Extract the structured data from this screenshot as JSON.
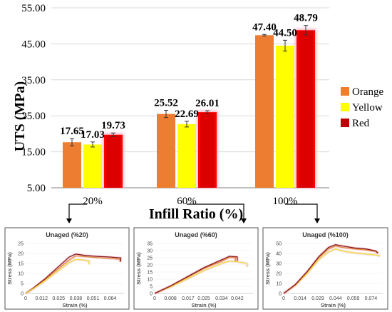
{
  "colors": {
    "orange": "#ED7D31",
    "yellow": "#FFFF00",
    "red": "#FF0000",
    "red_fill": "#C00000",
    "glow": "#F4B6C6",
    "curve_red": "#8B1A1A",
    "curve_orange": "#E4883A",
    "curve_yellow": "#F2E33B",
    "curve_shadow": "#E9B3C6",
    "axis": "#7F7F7F"
  },
  "chart_data": [
    {
      "type": "bar",
      "ylabel": "UTS (MPa)",
      "xlabel": "Infill Ratio (%)",
      "ylim": [
        5.0,
        55.0
      ],
      "yticks": [
        "5.00",
        "15.00",
        "25.00",
        "35.00",
        "45.00",
        "55.00"
      ],
      "ytick_values": [
        5,
        15,
        25,
        35,
        45,
        55
      ],
      "categories": [
        "20%",
        "60%",
        "100%"
      ],
      "legend_position": "right",
      "series": [
        {
          "name": "Orange",
          "values": [
            17.65,
            25.52,
            47.4
          ],
          "errors": [
            1.0,
            1.0,
            0.2
          ],
          "labels": [
            "17.65",
            "25.52",
            "47.40"
          ]
        },
        {
          "name": "Yellow",
          "values": [
            17.03,
            22.69,
            44.5
          ],
          "errors": [
            0.7,
            0.8,
            1.5
          ],
          "labels": [
            "17.03",
            "22.69",
            "44.50"
          ]
        },
        {
          "name": "Red",
          "values": [
            19.73,
            26.01,
            48.79
          ],
          "errors": [
            0.5,
            0.4,
            1.3
          ],
          "labels": [
            "19.73",
            "26.01",
            "48.79"
          ]
        }
      ]
    },
    {
      "type": "line",
      "title": "Unaged (%20)",
      "xlabel": "Strain (%)",
      "ylabel": "Stress (MPa)",
      "xticks": [
        "0",
        "0.012",
        "0.025",
        "0.038",
        "0.051",
        "0.064"
      ],
      "xtick_values": [
        0,
        0.012,
        0.025,
        0.038,
        0.051,
        0.064
      ],
      "yticks": [
        "0",
        "5",
        "10",
        "15",
        "20",
        "25"
      ],
      "ylim": [
        0,
        25
      ],
      "xlim": [
        0,
        0.0745
      ],
      "series": [
        {
          "color_key": "curve_orange",
          "x": [
            0,
            0.005,
            0.015,
            0.025,
            0.033,
            0.038,
            0.045,
            0.055,
            0.064,
            0.0715,
            0.0715
          ],
          "y": [
            0,
            2.2,
            7,
            12.5,
            16.8,
            18.8,
            18.4,
            17.9,
            17.5,
            17.1,
            15.8
          ]
        },
        {
          "color_key": "curve_red",
          "x": [
            0,
            0.005,
            0.015,
            0.025,
            0.033,
            0.038,
            0.045,
            0.055,
            0.064,
            0.072,
            0.072
          ],
          "y": [
            0,
            2.3,
            7.5,
            13.5,
            18.2,
            19.7,
            19.0,
            18.5,
            18.2,
            17.8,
            15.9
          ]
        },
        {
          "color_key": "curve_yellow",
          "x": [
            0,
            0.005,
            0.015,
            0.025,
            0.033,
            0.038,
            0.043,
            0.048,
            0.048
          ],
          "y": [
            0,
            2.0,
            6.5,
            11.5,
            15.5,
            17.0,
            16.8,
            16.2,
            14.5
          ]
        }
      ]
    },
    {
      "type": "line",
      "title": "Unaged (%60)",
      "xlabel": "Strain (%)",
      "ylabel": "Stress (MPa)",
      "xticks": [
        "0",
        "0.008",
        "0.017",
        "0.025",
        "0.034",
        "0.042"
      ],
      "xtick_values": [
        0,
        0.008,
        0.017,
        0.025,
        0.034,
        0.042
      ],
      "yticks": [
        "0",
        "5",
        "10",
        "15",
        "20",
        "25",
        "30",
        "35"
      ],
      "ylim": [
        0,
        35
      ],
      "xlim": [
        0,
        0.05
      ],
      "series": [
        {
          "color_key": "curve_yellow",
          "x": [
            0,
            0.008,
            0.017,
            0.025,
            0.034,
            0.038,
            0.042,
            0.045,
            0.047,
            0.047
          ],
          "y": [
            0,
            4.5,
            10.5,
            16,
            21,
            22.7,
            22.2,
            21.5,
            20.8,
            18.5
          ]
        },
        {
          "color_key": "curve_orange",
          "x": [
            0,
            0.008,
            0.017,
            0.025,
            0.034,
            0.038,
            0.041,
            0.041
          ],
          "y": [
            0,
            5,
            11.5,
            17.5,
            22.5,
            25.2,
            25,
            22.5
          ]
        },
        {
          "color_key": "curve_red",
          "x": [
            0,
            0.008,
            0.017,
            0.025,
            0.034,
            0.038,
            0.042,
            0.042
          ],
          "y": [
            0,
            5.2,
            12,
            18,
            23.5,
            26.0,
            25.6,
            22.8
          ]
        }
      ]
    },
    {
      "type": "line",
      "title": "Unaged (%100)",
      "xlabel": "Strain (%)",
      "ylabel": "Stress (MPa)",
      "xticks": [
        "0",
        "0.014",
        "0.029",
        "0.044",
        "0.059",
        "0.074"
      ],
      "xtick_values": [
        0,
        0.014,
        0.029,
        0.044,
        0.059,
        0.074
      ],
      "yticks": [
        "0",
        "10",
        "20",
        "30",
        "40",
        "50"
      ],
      "ylim": [
        0,
        50
      ],
      "xlim": [
        0,
        0.084
      ],
      "series": [
        {
          "color_key": "curve_yellow",
          "x": [
            0,
            0.01,
            0.02,
            0.03,
            0.038,
            0.044,
            0.05,
            0.06,
            0.07,
            0.078,
            0.082
          ],
          "y": [
            0,
            8,
            20,
            34,
            41.5,
            44.5,
            42.5,
            40.5,
            39.5,
            38.5,
            37.5
          ]
        },
        {
          "color_key": "curve_orange",
          "x": [
            0,
            0.01,
            0.02,
            0.03,
            0.038,
            0.044,
            0.05,
            0.06,
            0.07,
            0.078,
            0.08
          ],
          "y": [
            0,
            8.5,
            21.5,
            36,
            44.5,
            47.4,
            46,
            44.5,
            43.5,
            42,
            40
          ]
        },
        {
          "color_key": "curve_red",
          "x": [
            0,
            0.01,
            0.02,
            0.03,
            0.038,
            0.044,
            0.05,
            0.06,
            0.07,
            0.078,
            0.08
          ],
          "y": [
            0,
            9,
            22,
            37,
            46,
            48.8,
            47.5,
            45.5,
            44.5,
            42.5,
            40.5
          ]
        }
      ]
    }
  ]
}
